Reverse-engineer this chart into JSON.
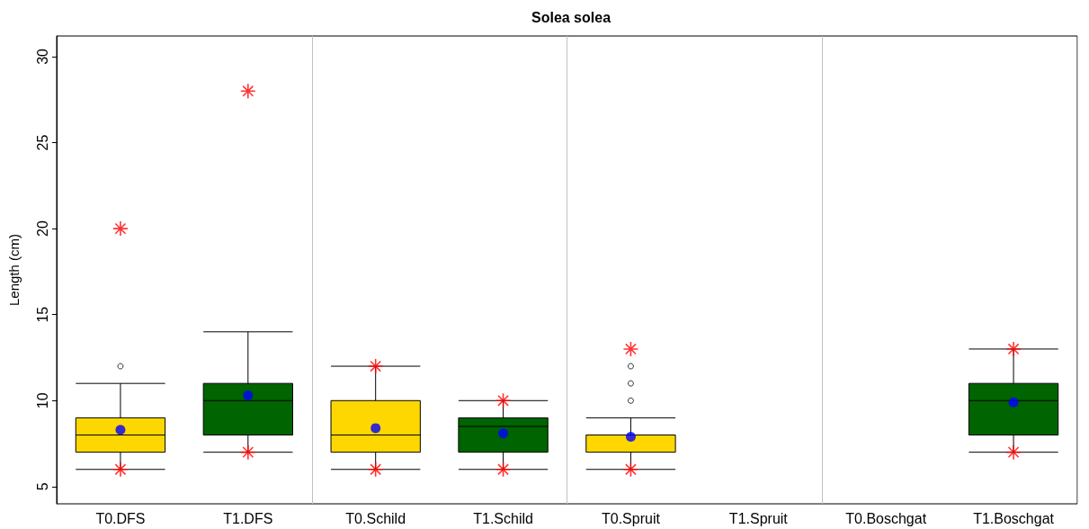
{
  "chart_data": {
    "type": "box",
    "title": "Solea solea",
    "ylabel": "Length (cm)",
    "categories": [
      "T0.DFS",
      "T1.DFS",
      "T0.Schild",
      "T1.Schild",
      "T0.Spruit",
      "T1.Spruit",
      "T0.Boschgat",
      "T1.Boschgat"
    ],
    "boxes": [
      {
        "low": 6,
        "q1": 7,
        "median": 8,
        "q3": 9,
        "high": 11,
        "mean": 8.3,
        "outliers": [
          12
        ]
      },
      {
        "low": 7,
        "q1": 8,
        "median": 10,
        "q3": 11,
        "high": 14,
        "mean": 10.3
      },
      {
        "low": 6,
        "q1": 7,
        "median": 8,
        "q3": 10,
        "high": 12,
        "mean": 8.4
      },
      {
        "low": 6,
        "q1": 7,
        "median": 8.5,
        "q3": 9,
        "high": 10,
        "mean": 8.1
      },
      {
        "low": 6,
        "q1": 7,
        "median": 8,
        "q3": 8,
        "high": 9,
        "mean": 7.9,
        "outliers": [
          10,
          11,
          12
        ]
      },
      null,
      null,
      {
        "low": 7,
        "q1": 8,
        "median": 10,
        "q3": 11,
        "high": 13,
        "mean": 9.9
      }
    ],
    "colors": [
      "#ffd700",
      "#006400",
      "#ffd700",
      "#006400",
      "#ffd700",
      null,
      null,
      "#006400"
    ],
    "ylim": [
      4,
      31.2
    ],
    "yticks": [
      5,
      10,
      15,
      20,
      25,
      30
    ],
    "grid": false,
    "series": [
      {
        "type": "scatter",
        "color": "#ff0000",
        "marker": "star",
        "x": [
          "T0.DFS",
          "T0.DFS",
          "T1.DFS",
          "T1.DFS",
          "T0.Schild",
          "T0.Schild",
          "T1.Schild",
          "T1.Schild",
          "T0.Spruit",
          "T0.Spruit",
          "T1.Boschgat",
          "T1.Boschgat"
        ],
        "values": [
          20,
          6,
          28,
          7,
          12,
          6,
          10,
          6,
          13,
          6,
          13,
          7
        ]
      }
    ]
  }
}
